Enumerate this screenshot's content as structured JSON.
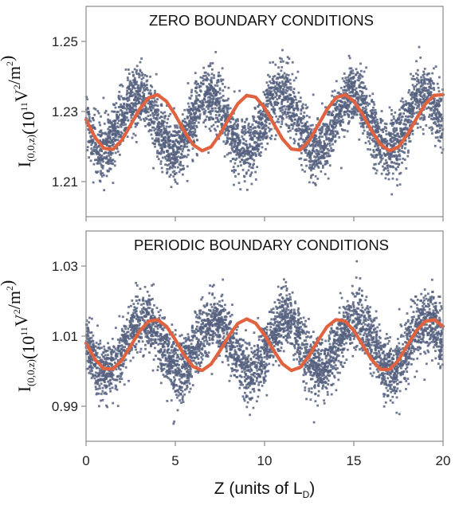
{
  "chart_data": [
    {
      "type": "scatter",
      "title": "ZERO BOUNDARY CONDITIONS",
      "xlabel": "",
      "ylabel_main": "I",
      "ylabel_sub": "(0,0,z)",
      "ylabel_pre": "(10",
      "ylabel_exp": "11",
      "ylabel_unit_v": "V",
      "ylabel_unit_v_exp": "2",
      "ylabel_slash": "/m",
      "ylabel_unit_m_exp": "2",
      "ylabel_close": ")",
      "xlim": [
        0,
        20
      ],
      "ylim": [
        1.2,
        1.26
      ],
      "yticks": [
        1.21,
        1.23,
        1.25
      ],
      "ytick_labels": [
        "1.21",
        "1.23",
        "1.25"
      ],
      "xticks": [
        0,
        5,
        10,
        15,
        20
      ],
      "xtick_labels": [
        "",
        "",
        "",
        "",
        ""
      ],
      "scatter_color": "#55607f",
      "fit_color": "#e0623f",
      "series": [
        {
          "kind": "scatter-cloud",
          "x": [
            0,
            0.25,
            0.5,
            0.75,
            1,
            1.25,
            1.5,
            1.75,
            2,
            2.25,
            2.5,
            2.75,
            3,
            3.25,
            3.5,
            3.75,
            4,
            4.25,
            4.5,
            4.75,
            5,
            5.25,
            5.5,
            5.75,
            6,
            6.25,
            6.5,
            6.75,
            7,
            7.25,
            7.5,
            7.75,
            8,
            8.25,
            8.5,
            8.75,
            9,
            9.25,
            9.5,
            9.75,
            10,
            10.25,
            10.5,
            10.75,
            11,
            11.25,
            11.5,
            11.75,
            12,
            12.25,
            12.5,
            12.75,
            13,
            13.25,
            13.5,
            13.75,
            14,
            14.25,
            14.5,
            14.75,
            15,
            15.25,
            15.5,
            15.75,
            16,
            16.25,
            16.5,
            16.75,
            17,
            17.25,
            17.5,
            17.75,
            18,
            18.25,
            18.5,
            18.75,
            19,
            19.25,
            19.5,
            19.75,
            20
          ],
          "center": [
            1.227,
            1.223,
            1.221,
            1.219,
            1.219,
            1.22,
            1.222,
            1.225,
            1.228,
            1.231,
            1.233,
            1.234,
            1.235,
            1.234,
            1.232,
            1.229,
            1.226,
            1.223,
            1.221,
            1.219,
            1.219,
            1.22,
            1.222,
            1.225,
            1.228,
            1.231,
            1.233,
            1.235,
            1.235,
            1.234,
            1.232,
            1.229,
            1.226,
            1.223,
            1.22,
            1.219,
            1.219,
            1.22,
            1.222,
            1.225,
            1.228,
            1.231,
            1.233,
            1.235,
            1.235,
            1.234,
            1.232,
            1.229,
            1.226,
            1.223,
            1.22,
            1.219,
            1.219,
            1.22,
            1.222,
            1.225,
            1.228,
            1.231,
            1.233,
            1.235,
            1.235,
            1.234,
            1.232,
            1.229,
            1.226,
            1.223,
            1.22,
            1.219,
            1.219,
            1.22,
            1.222,
            1.225,
            1.228,
            1.231,
            1.233,
            1.235,
            1.235,
            1.234,
            1.232,
            1.229,
            1.227
          ],
          "spread": 0.007,
          "y_min": 1.205,
          "y_max": 1.254
        },
        {
          "kind": "fit-line",
          "x": [
            0,
            0.5,
            1,
            1.5,
            2,
            2.5,
            3,
            3.5,
            4,
            4.5,
            5,
            5.5,
            6,
            6.5,
            7,
            7.5,
            8,
            8.5,
            9,
            9.5,
            10,
            10.5,
            11,
            11.5,
            12,
            12.5,
            13,
            13.5,
            14,
            14.5,
            15,
            15.5,
            16,
            16.5,
            17,
            17.5,
            18,
            18.5,
            19,
            19.5,
            20
          ],
          "y": [
            1.2277,
            1.2226,
            1.2195,
            1.2192,
            1.2218,
            1.2262,
            1.2307,
            1.2339,
            1.2348,
            1.2329,
            1.229,
            1.2244,
            1.2205,
            1.2188,
            1.2199,
            1.2235,
            1.228,
            1.2322,
            1.2346,
            1.2341,
            1.2311,
            1.2266,
            1.2222,
            1.2193,
            1.219,
            1.2217,
            1.2261,
            1.2306,
            1.2339,
            1.2348,
            1.233,
            1.2291,
            1.2245,
            1.2206,
            1.2188,
            1.2199,
            1.2234,
            1.2279,
            1.2321,
            1.2346,
            1.2348
          ]
        }
      ]
    },
    {
      "type": "scatter",
      "title": "PERIODIC BOUNDARY CONDITIONS",
      "xlabel_pre": "Z (units of L",
      "xlabel_sub": "D",
      "xlabel_post": ")",
      "ylabel_main": "I",
      "ylabel_sub": "(0,0,z)",
      "ylabel_pre": "(10",
      "ylabel_exp": "11",
      "ylabel_unit_v": "V",
      "ylabel_unit_v_exp": "2",
      "ylabel_slash": "/m",
      "ylabel_unit_m_exp": "2",
      "ylabel_close": ")",
      "xlim": [
        0,
        20
      ],
      "ylim": [
        0.98,
        1.04
      ],
      "yticks": [
        0.99,
        1.01,
        1.03
      ],
      "ytick_labels": [
        "0.99",
        "1.01",
        "1.03"
      ],
      "xticks": [
        0,
        5,
        10,
        15,
        20
      ],
      "xtick_labels": [
        "0",
        "5",
        "10",
        "15",
        "20"
      ],
      "scatter_color": "#55607f",
      "fit_color": "#e0623f",
      "series": [
        {
          "kind": "scatter-cloud",
          "x": [
            0,
            0.25,
            0.5,
            0.75,
            1,
            1.25,
            1.5,
            1.75,
            2,
            2.25,
            2.5,
            2.75,
            3,
            3.25,
            3.5,
            3.75,
            4,
            4.25,
            4.5,
            4.75,
            5,
            5.25,
            5.5,
            5.75,
            6,
            6.25,
            6.5,
            6.75,
            7,
            7.25,
            7.5,
            7.75,
            8,
            8.25,
            8.5,
            8.75,
            9,
            9.25,
            9.5,
            9.75,
            10,
            10.25,
            10.5,
            10.75,
            11,
            11.25,
            11.5,
            11.75,
            12,
            12.25,
            12.5,
            12.75,
            13,
            13.25,
            13.5,
            13.75,
            14,
            14.25,
            14.5,
            14.75,
            15,
            15.25,
            15.5,
            15.75,
            16,
            16.25,
            16.5,
            16.75,
            17,
            17.25,
            17.5,
            17.75,
            18,
            18.25,
            18.5,
            18.75,
            19,
            19.25,
            19.5,
            19.75,
            20
          ],
          "center": [
            1.008,
            1.006,
            1.003,
            1.001,
            1.0,
            1.0,
            1.001,
            1.003,
            1.005,
            1.008,
            1.011,
            1.013,
            1.014,
            1.015,
            1.014,
            1.012,
            1.01,
            1.007,
            1.004,
            1.002,
            1.0,
            1.0,
            1.001,
            1.002,
            1.005,
            1.008,
            1.011,
            1.013,
            1.014,
            1.015,
            1.014,
            1.012,
            1.009,
            1.007,
            1.004,
            1.002,
            1.0,
            1.0,
            1.001,
            1.003,
            1.005,
            1.008,
            1.011,
            1.013,
            1.015,
            1.015,
            1.014,
            1.012,
            1.009,
            1.006,
            1.003,
            1.001,
            1.0,
            1.0,
            1.001,
            1.003,
            1.006,
            1.009,
            1.011,
            1.013,
            1.015,
            1.015,
            1.014,
            1.011,
            1.009,
            1.006,
            1.003,
            1.001,
            1.0,
            1.0,
            1.002,
            1.004,
            1.007,
            1.009,
            1.011,
            1.013,
            1.014,
            1.014,
            1.013,
            1.011,
            1.008
          ],
          "spread": 0.007,
          "y_min": 0.985,
          "y_max": 1.033
        },
        {
          "kind": "fit-line",
          "x": [
            0,
            0.5,
            1,
            1.5,
            2,
            2.5,
            3,
            3.5,
            4,
            4.5,
            5,
            5.5,
            6,
            6.5,
            7,
            7.5,
            8,
            8.5,
            9,
            9.5,
            10,
            10.5,
            11,
            11.5,
            12,
            12.5,
            13,
            13.5,
            14,
            14.5,
            15,
            15.5,
            16,
            16.5,
            17,
            17.5,
            18,
            18.5,
            19,
            19.5,
            20
          ],
          "y": [
            1.008,
            1.0034,
            1.0007,
            1.0006,
            1.0031,
            1.0072,
            1.0114,
            1.0142,
            1.0147,
            1.0128,
            1.009,
            1.0046,
            1.0013,
            1.0002,
            1.002,
            1.0058,
            1.0101,
            1.0136,
            1.0149,
            1.0137,
            1.0103,
            1.006,
            1.0021,
            1.0002,
            1.0011,
            1.0044,
            1.0088,
            1.0127,
            1.0147,
            1.0143,
            1.0116,
            1.0074,
            1.0033,
            1.0005,
            1.0005,
            1.0031,
            1.0073,
            1.0115,
            1.0142,
            1.0147,
            1.0128
          ]
        }
      ]
    }
  ]
}
